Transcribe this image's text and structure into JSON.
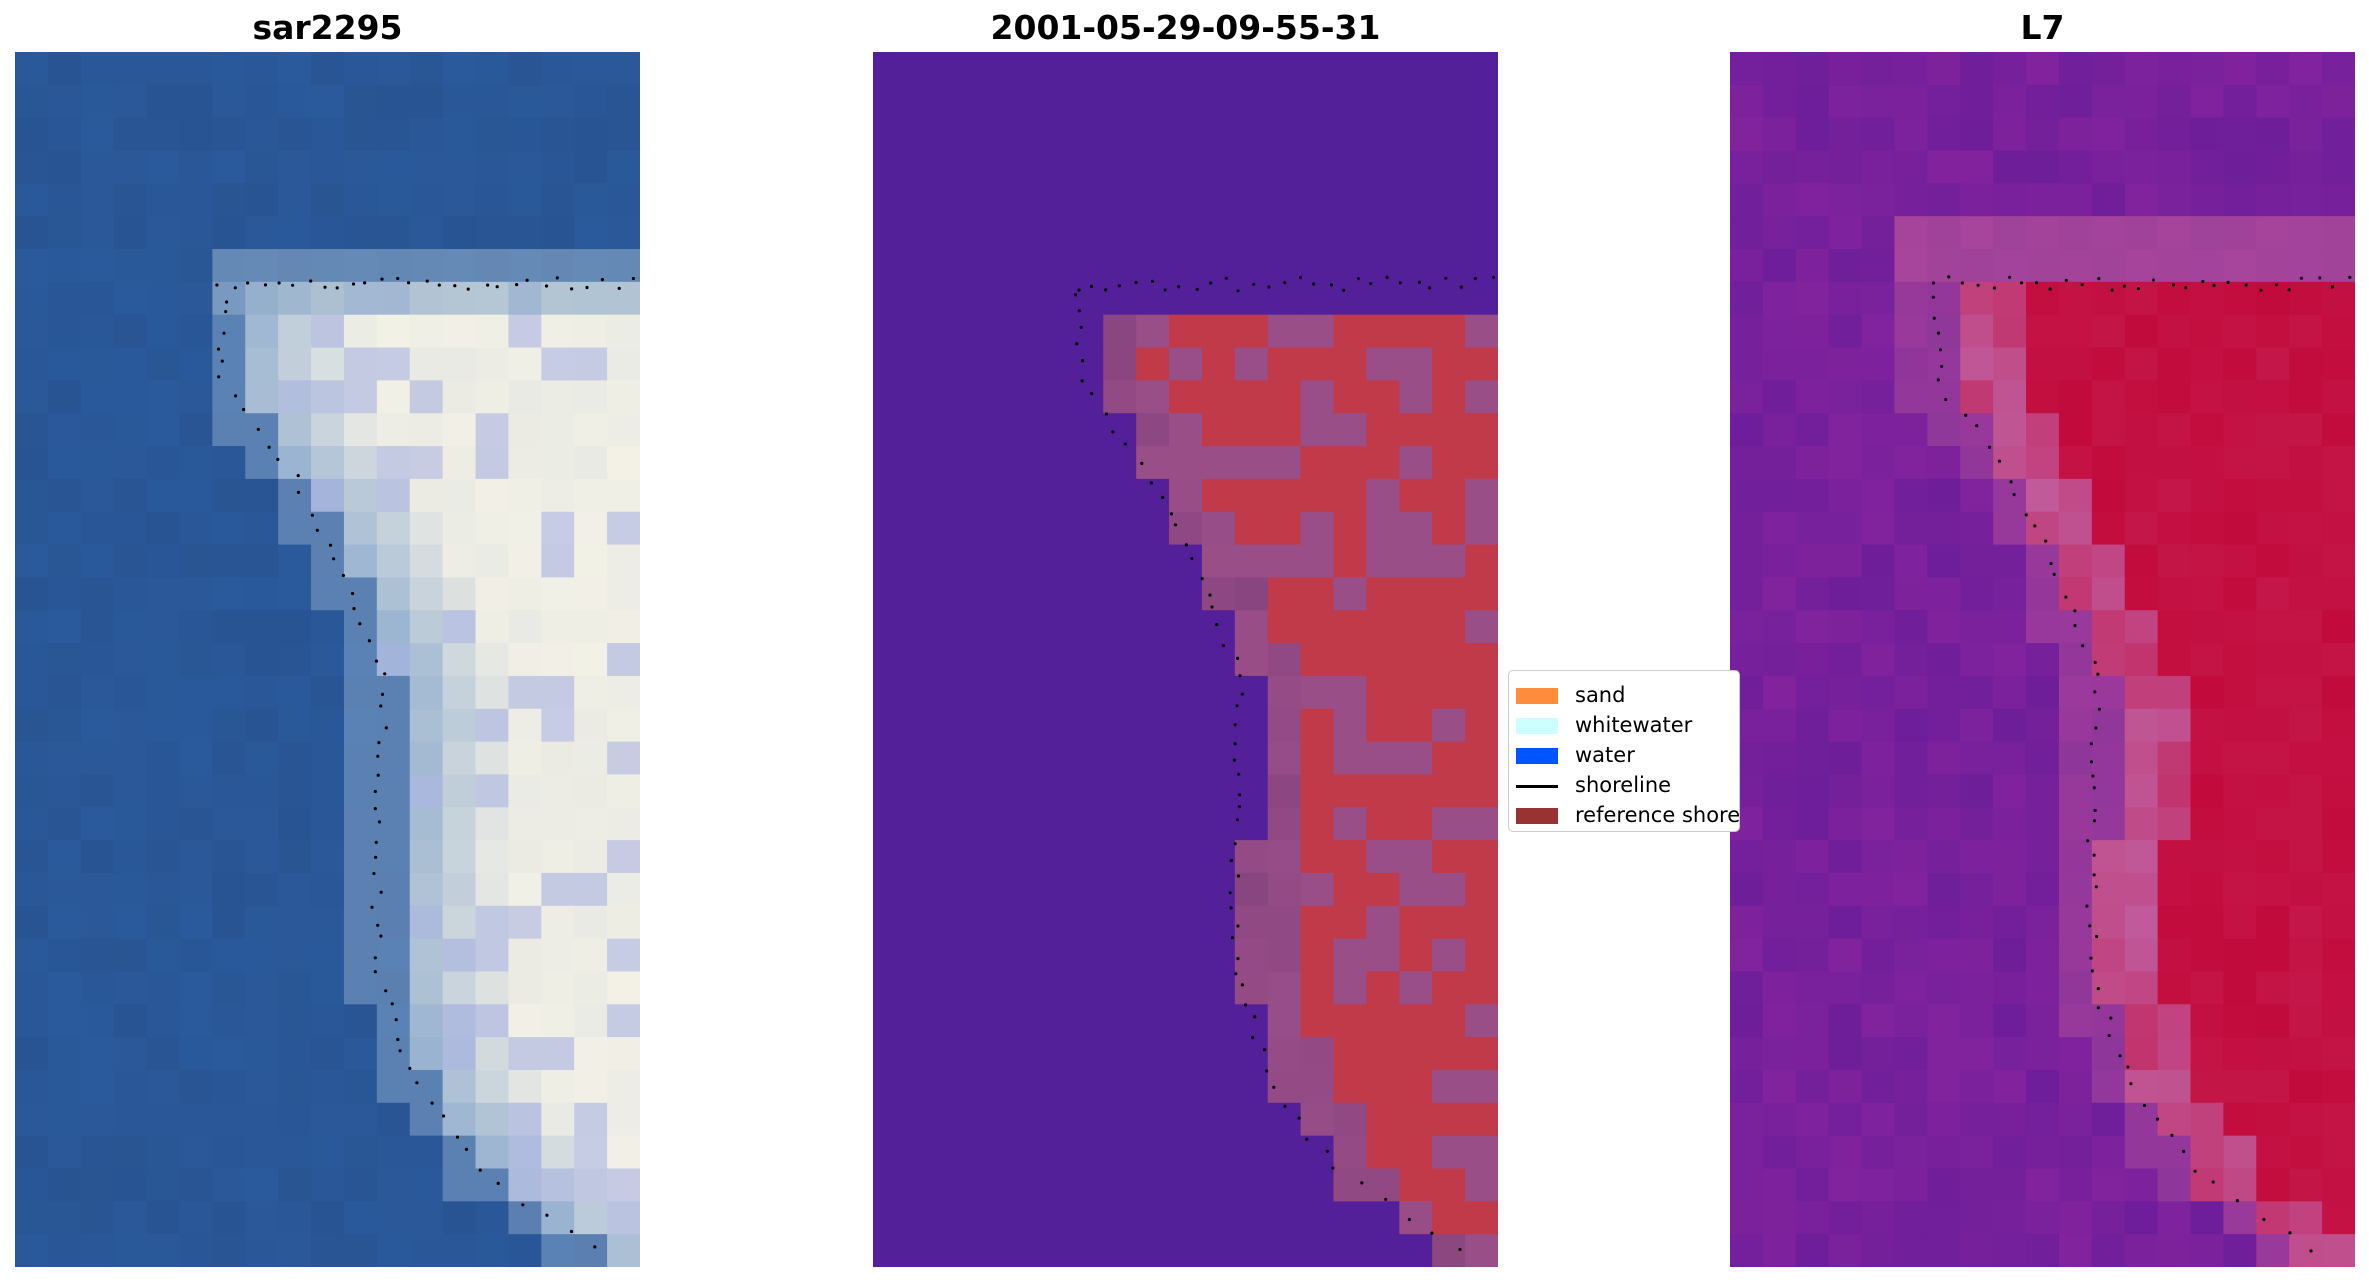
{
  "titles": {
    "left": "sar2295",
    "middle": "2001-05-29-09-55-31",
    "right": "L7"
  },
  "legend": {
    "items": [
      {
        "label": "sand",
        "color": "#FF8C3C",
        "kind": "patch"
      },
      {
        "label": "whitewater",
        "color": "#CCFFFF",
        "kind": "patch"
      },
      {
        "label": "water",
        "color": "#0055FF",
        "kind": "patch"
      },
      {
        "label": "shoreline",
        "color": "#000000",
        "kind": "line"
      },
      {
        "label": "reference shore",
        "color": "#993333",
        "kind": "patch"
      }
    ]
  },
  "colors": {
    "sar_water": "#2a5a9c",
    "sar_bright": "#f3f1e6",
    "class_water": "#53209a",
    "class_sand": "#c03a4a",
    "class_mix": "#9a4e88",
    "l7_purple": "#6e1e9a",
    "l7_red": "#c20a3c",
    "l7_pink": "#c05a9a",
    "shoreline_dots": "#000000"
  }
}
